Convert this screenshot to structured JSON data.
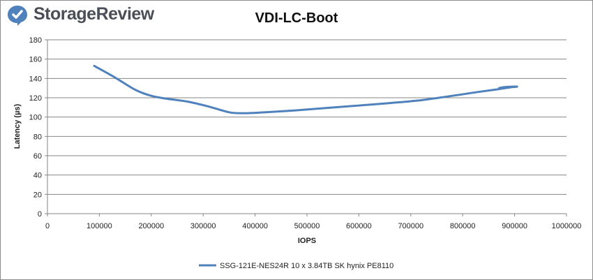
{
  "brand": {
    "name": "StorageReview",
    "logo_icon": "storagereview-logo-icon",
    "icon_color": "#4f81bd",
    "text_color": "#4a4f57"
  },
  "chart_data": {
    "type": "line",
    "title": "VDI-LC-Boot",
    "xlabel": "IOPS",
    "ylabel": "Latency (µs)",
    "xlim": [
      0,
      1000000
    ],
    "ylim": [
      0,
      180
    ],
    "x_ticks": [
      "0",
      "100000",
      "200000",
      "300000",
      "400000",
      "500000",
      "600000",
      "700000",
      "800000",
      "900000",
      "1000000"
    ],
    "y_ticks": [
      "0",
      "20",
      "40",
      "60",
      "80",
      "100",
      "120",
      "140",
      "160",
      "180"
    ],
    "grid": "horizontal",
    "legend_position": "bottom",
    "series": [
      {
        "name": "SSG-121E-NES24R 10 x 3.84TB SK hynix PE8110",
        "color": "#4f81bd",
        "x": [
          90000,
          130000,
          170000,
          200000,
          230000,
          270000,
          310000,
          350000,
          380000,
          420000,
          480000,
          540000,
          600000,
          660000,
          720000,
          780000,
          830000,
          870000,
          895000,
          905000,
          895000,
          880000,
          870000
        ],
        "y": [
          153,
          141,
          128,
          122,
          119,
          116,
          111,
          105,
          104,
          105,
          107,
          109.5,
          112,
          114.5,
          117.5,
          122,
          126,
          129,
          131,
          131.5,
          131.5,
          131,
          130
        ]
      }
    ]
  }
}
